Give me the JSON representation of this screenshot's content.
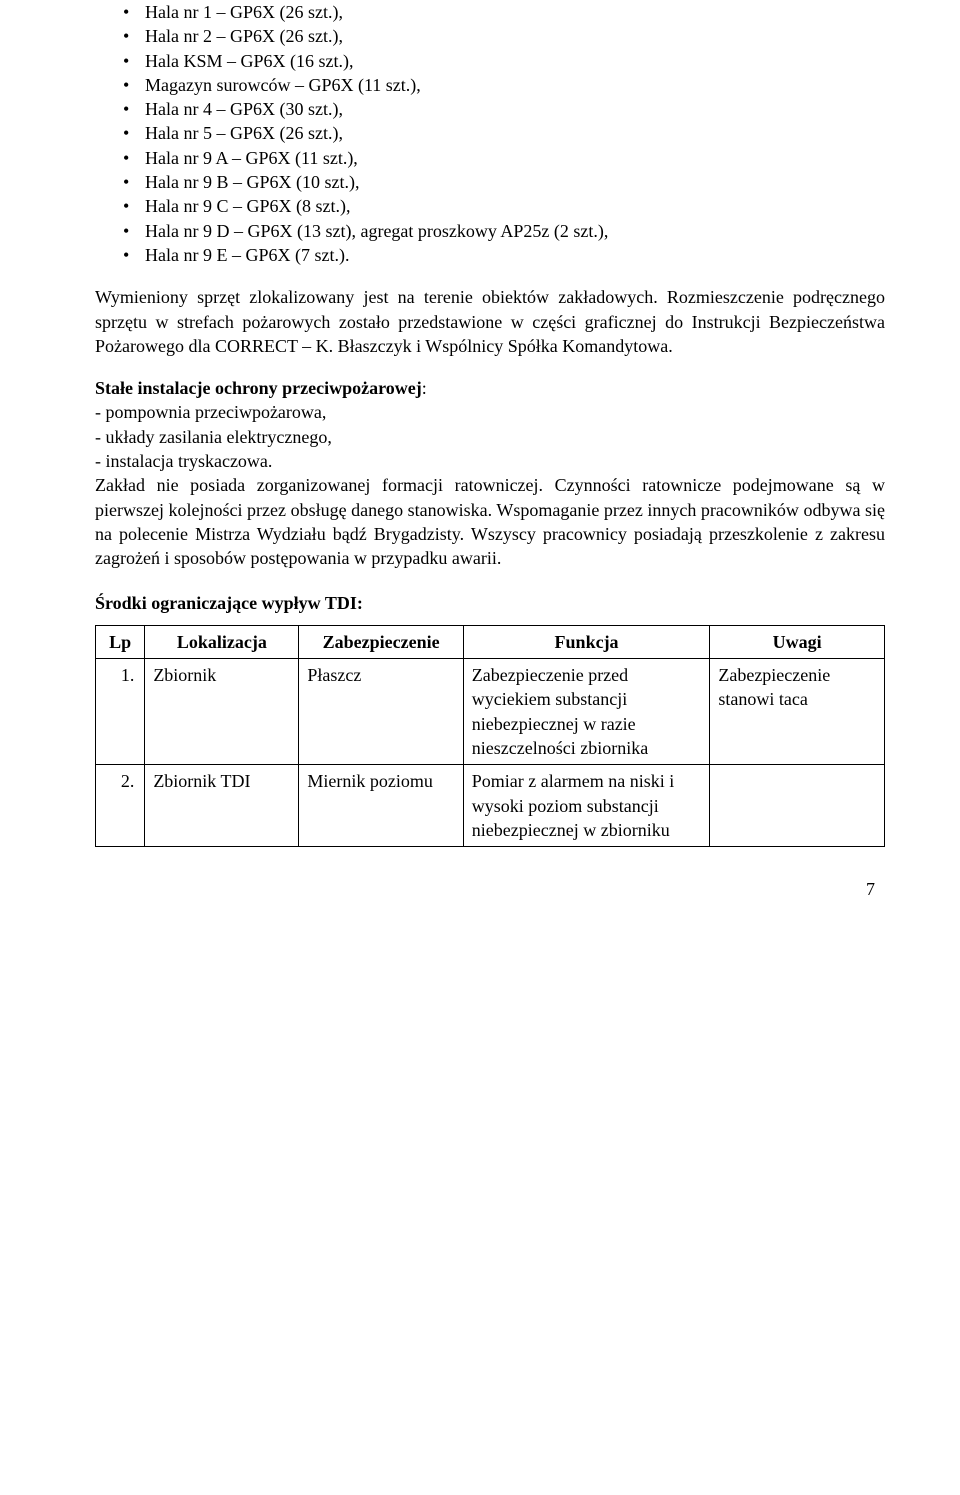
{
  "bullet_items": [
    "Hala nr 1 – GP6X (26 szt.),",
    "Hala nr 2 – GP6X (26 szt.),",
    "Hala KSM – GP6X (16 szt.),",
    "Magazyn surowców – GP6X (11 szt.),",
    "Hala nr 4 – GP6X (30 szt.),",
    "Hala nr 5 – GP6X (26 szt.),",
    "Hala nr 9 A – GP6X (11 szt.),",
    "Hala nr 9 B – GP6X (10 szt.),",
    "Hala nr 9 C – GP6X (8 szt.),",
    "Hala nr 9 D – GP6X (13 szt), agregat proszkowy AP25z (2 szt.),",
    "Hala nr 9 E – GP6X (7 szt.)."
  ],
  "para1": "Wymieniony sprzęt zlokalizowany jest na terenie obiektów zakładowych. Rozmieszczenie podręcznego sprzętu w strefach pożarowych zostało przedstawione w części graficznej do Instrukcji Bezpieczeństwa Pożarowego dla CORRECT – K. Błaszczyk i Wspólnicy Spółka Komandytowa.",
  "fixed_heading": "Stałe instalacje ochrony przeciwpożarowej",
  "fixed_items": [
    "- pompownia przeciwpożarowa,",
    "- układy zasilania elektrycznego,",
    "- instalacja tryskaczowa."
  ],
  "para2": "Zakład nie posiada zorganizowanej formacji ratowniczej. Czynności ratownicze podejmowane są w pierwszej kolejności przez obsługę danego stanowiska. Wspomaganie przez innych pracowników odbywa się na polecenie Mistrza Wydziału bądź Brygadzisty. Wszyscy pracownicy posiadają przeszkolenie z zakresu zagrożeń i sposobów postępowania w przypadku awarii.",
  "tdi_heading": "Środki ograniczające wypływ TDI:",
  "table": {
    "headers": [
      "Lp",
      "Lokalizacja",
      "Zabezpieczenie",
      "Funkcja",
      "Uwagi"
    ],
    "rows": [
      {
        "lp": "1.",
        "lokalizacja": "Zbiornik",
        "zabezpieczenie": "Płaszcz",
        "funkcja": "Zabezpieczenie przed wyciekiem substancji niebezpiecznej w razie nieszczelności zbiornika",
        "uwagi": "Zabezpieczenie stanowi taca"
      },
      {
        "lp": "2.",
        "lokalizacja": "Zbiornik TDI",
        "zabezpieczenie": "Miernik poziomu",
        "funkcja": "Pomiar z alarmem na niski i wysoki poziom substancji niebezpiecznej w zbiorniku",
        "uwagi": ""
      }
    ]
  },
  "page_number": "7"
}
